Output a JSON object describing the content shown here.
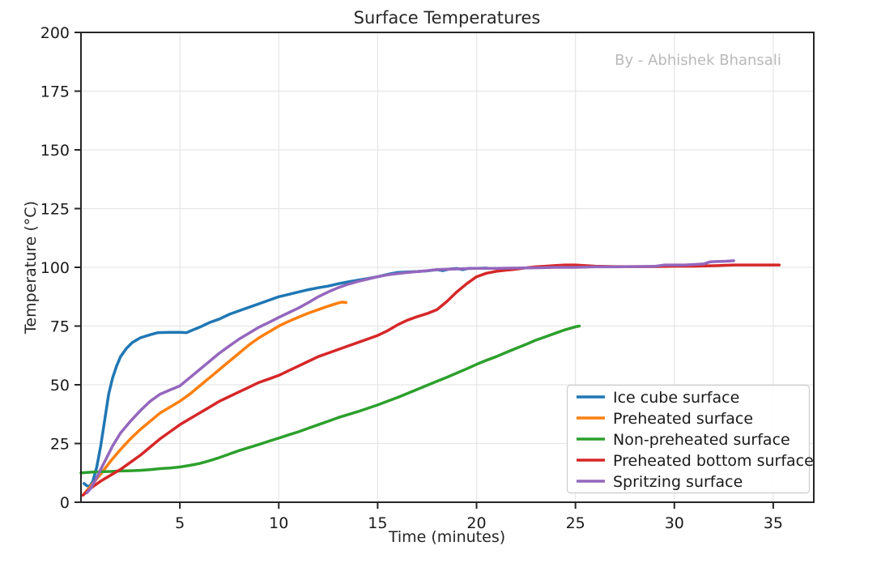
{
  "chart_data": {
    "type": "line",
    "title": "Surface Temperatures",
    "watermark": "By - Abhishek Bhansali",
    "xlabel": "Time (minutes)",
    "ylabel": "Temperature (°C)",
    "xlim": [
      0,
      37.05
    ],
    "ylim": [
      0,
      200
    ],
    "xticks": [
      5,
      10,
      15,
      20,
      25,
      30,
      35
    ],
    "yticks": [
      0,
      25,
      50,
      75,
      100,
      125,
      150,
      175,
      200
    ],
    "grid": true,
    "legend_position": "lower right",
    "colors": {
      "grid": "#e6e6e6",
      "spine": "#262626",
      "tick_label": "#1a1a1a",
      "watermark": "#b9b9b9",
      "legend_border": "#cccccc"
    },
    "series": [
      {
        "name": "Ice cube surface",
        "color": "#1f77b4",
        "points": [
          [
            0.15,
            8
          ],
          [
            0.3,
            7
          ],
          [
            0.45,
            6.8
          ],
          [
            0.6,
            9
          ],
          [
            0.8,
            15
          ],
          [
            1.0,
            24
          ],
          [
            1.2,
            35
          ],
          [
            1.4,
            46
          ],
          [
            1.6,
            53
          ],
          [
            1.8,
            58
          ],
          [
            2.0,
            62
          ],
          [
            2.3,
            65.5
          ],
          [
            2.6,
            68
          ],
          [
            3.0,
            70
          ],
          [
            3.5,
            71.3
          ],
          [
            3.9,
            72.2
          ],
          [
            4.5,
            72.3
          ],
          [
            5.0,
            72.3
          ],
          [
            5.35,
            72.2
          ],
          [
            5.5,
            72.8
          ],
          [
            6,
            74.5
          ],
          [
            6.5,
            76.5
          ],
          [
            7,
            78
          ],
          [
            7.5,
            80
          ],
          [
            8,
            81.5
          ],
          [
            8.5,
            83
          ],
          [
            9,
            84.5
          ],
          [
            9.5,
            86
          ],
          [
            10,
            87.5
          ],
          [
            10.5,
            88.5
          ],
          [
            11,
            89.5
          ],
          [
            11.5,
            90.5
          ],
          [
            12,
            91.3
          ],
          [
            12.5,
            92
          ],
          [
            13,
            93
          ],
          [
            13.5,
            93.8
          ],
          [
            14,
            94.5
          ],
          [
            14.5,
            95.2
          ],
          [
            15,
            96
          ],
          [
            15.5,
            97
          ],
          [
            16,
            97.8
          ],
          [
            16.5,
            98
          ],
          [
            17,
            98.2
          ],
          [
            17.5,
            98.5
          ],
          [
            18,
            99
          ],
          [
            18.3,
            98.6
          ],
          [
            18.6,
            99.2
          ],
          [
            19,
            99.5
          ],
          [
            19.3,
            99
          ],
          [
            19.6,
            99.6
          ],
          [
            20,
            99.6
          ],
          [
            20.5,
            99.7
          ]
        ]
      },
      {
        "name": "Preheated surface",
        "color": "#ff7f0e",
        "points": [
          [
            0.2,
            4
          ],
          [
            0.5,
            7
          ],
          [
            1,
            12
          ],
          [
            1.5,
            17.5
          ],
          [
            2,
            22.5
          ],
          [
            2.5,
            27
          ],
          [
            3,
            31
          ],
          [
            3.5,
            34.5
          ],
          [
            4,
            38
          ],
          [
            4.5,
            40.5
          ],
          [
            5,
            43
          ],
          [
            5.5,
            46
          ],
          [
            6,
            49.5
          ],
          [
            6.5,
            53
          ],
          [
            7,
            56.5
          ],
          [
            7.5,
            60
          ],
          [
            8,
            63.5
          ],
          [
            8.5,
            67
          ],
          [
            9,
            70
          ],
          [
            9.5,
            72.5
          ],
          [
            10,
            75
          ],
          [
            10.5,
            77
          ],
          [
            11,
            78.8
          ],
          [
            11.5,
            80.5
          ],
          [
            12,
            82
          ],
          [
            12.5,
            83.5
          ],
          [
            13,
            84.8
          ],
          [
            13.2,
            85.2
          ],
          [
            13.4,
            85
          ]
        ]
      },
      {
        "name": "Non-preheated surface",
        "color": "#2ca02c",
        "points": [
          [
            0,
            12.5
          ],
          [
            0.5,
            12.8
          ],
          [
            1,
            13
          ],
          [
            1.5,
            13.1
          ],
          [
            2,
            13.3
          ],
          [
            2.5,
            13.4
          ],
          [
            3,
            13.6
          ],
          [
            3.5,
            13.9
          ],
          [
            4,
            14.3
          ],
          [
            4.5,
            14.6
          ],
          [
            5,
            15
          ],
          [
            5.5,
            15.7
          ],
          [
            6,
            16.5
          ],
          [
            6.5,
            17.7
          ],
          [
            7,
            19
          ],
          [
            7.5,
            20.5
          ],
          [
            8,
            22
          ],
          [
            8.5,
            23.3
          ],
          [
            9,
            24.6
          ],
          [
            9.5,
            26
          ],
          [
            10,
            27.3
          ],
          [
            10.5,
            28.7
          ],
          [
            11,
            30
          ],
          [
            11.5,
            31.5
          ],
          [
            12,
            33
          ],
          [
            12.5,
            34.5
          ],
          [
            13,
            36
          ],
          [
            13.5,
            37.3
          ],
          [
            14,
            38.6
          ],
          [
            14.5,
            40
          ],
          [
            15,
            41.4
          ],
          [
            15.5,
            43
          ],
          [
            16,
            44.6
          ],
          [
            16.5,
            46.3
          ],
          [
            17,
            48
          ],
          [
            17.5,
            49.8
          ],
          [
            18,
            51.5
          ],
          [
            18.5,
            53.2
          ],
          [
            19,
            55
          ],
          [
            19.5,
            56.8
          ],
          [
            20,
            58.7
          ],
          [
            20.5,
            60.4
          ],
          [
            21,
            62
          ],
          [
            21.5,
            63.8
          ],
          [
            22,
            65.5
          ],
          [
            22.5,
            67.2
          ],
          [
            23,
            69
          ],
          [
            23.5,
            70.5
          ],
          [
            24,
            72
          ],
          [
            24.5,
            73.5
          ],
          [
            25,
            74.7
          ],
          [
            25.2,
            75
          ]
        ]
      },
      {
        "name": "Preheated bottom surface",
        "color": "#d62728",
        "points": [
          [
            0.1,
            3
          ],
          [
            0.5,
            6
          ],
          [
            1,
            9
          ],
          [
            1.5,
            11.5
          ],
          [
            2,
            14
          ],
          [
            2.5,
            17
          ],
          [
            3,
            20
          ],
          [
            3.5,
            23.5
          ],
          [
            4,
            27
          ],
          [
            4.5,
            30
          ],
          [
            5,
            33
          ],
          [
            5.5,
            35.5
          ],
          [
            6,
            38
          ],
          [
            6.5,
            40.5
          ],
          [
            7,
            43
          ],
          [
            7.5,
            45
          ],
          [
            8,
            47
          ],
          [
            8.5,
            49
          ],
          [
            9,
            51
          ],
          [
            9.5,
            52.5
          ],
          [
            10,
            54
          ],
          [
            10.5,
            56
          ],
          [
            11,
            58
          ],
          [
            11.5,
            60
          ],
          [
            12,
            62
          ],
          [
            12.5,
            63.5
          ],
          [
            13,
            65
          ],
          [
            13.5,
            66.5
          ],
          [
            14,
            68
          ],
          [
            14.5,
            69.5
          ],
          [
            15,
            71
          ],
          [
            15.5,
            73
          ],
          [
            16,
            75.5
          ],
          [
            16.5,
            77.5
          ],
          [
            17,
            79
          ],
          [
            17.5,
            80.3
          ],
          [
            18,
            82
          ],
          [
            18.5,
            85.5
          ],
          [
            19,
            89.5
          ],
          [
            19.5,
            93
          ],
          [
            20,
            96
          ],
          [
            20.5,
            97.5
          ],
          [
            21,
            98.3
          ],
          [
            21.5,
            98.8
          ],
          [
            22,
            99.2
          ],
          [
            22.5,
            99.8
          ],
          [
            23,
            100.2
          ],
          [
            23.5,
            100.5
          ],
          [
            24,
            100.8
          ],
          [
            24.5,
            101
          ],
          [
            25,
            101
          ],
          [
            26,
            100.5
          ],
          [
            27,
            100.3
          ],
          [
            28,
            100.3
          ],
          [
            29,
            100.3
          ],
          [
            30,
            100.5
          ],
          [
            31,
            100.5
          ],
          [
            32,
            100.7
          ],
          [
            33,
            101
          ],
          [
            34,
            101
          ],
          [
            35.3,
            101
          ]
        ]
      },
      {
        "name": "Spritzing surface",
        "color": "#9467bd",
        "points": [
          [
            0.3,
            4
          ],
          [
            0.5,
            6
          ],
          [
            0.8,
            10.5
          ],
          [
            1,
            14
          ],
          [
            1.3,
            19
          ],
          [
            1.6,
            24
          ],
          [
            2,
            29.5
          ],
          [
            2.5,
            34.5
          ],
          [
            3,
            39
          ],
          [
            3.5,
            43
          ],
          [
            4,
            46
          ],
          [
            4.5,
            47.8
          ],
          [
            5,
            49.5
          ],
          [
            5.5,
            53
          ],
          [
            6,
            56.5
          ],
          [
            6.5,
            60
          ],
          [
            7,
            63.5
          ],
          [
            7.5,
            66.5
          ],
          [
            8,
            69.5
          ],
          [
            8.5,
            72
          ],
          [
            9,
            74.5
          ],
          [
            9.5,
            76.5
          ],
          [
            10,
            78.7
          ],
          [
            10.5,
            80.7
          ],
          [
            11,
            82.7
          ],
          [
            11.5,
            85
          ],
          [
            12,
            87.5
          ],
          [
            12.5,
            89.5
          ],
          [
            13,
            91.3
          ],
          [
            13.5,
            92.8
          ],
          [
            14,
            94
          ],
          [
            14.5,
            95
          ],
          [
            15,
            96
          ],
          [
            15.5,
            96.8
          ],
          [
            16,
            97.3
          ],
          [
            16.5,
            97.8
          ],
          [
            17,
            98.2
          ],
          [
            17.5,
            98.6
          ],
          [
            18,
            99
          ],
          [
            19,
            99.3
          ],
          [
            20,
            99.6
          ],
          [
            21,
            99.6
          ],
          [
            22,
            99.7
          ],
          [
            23,
            99.8
          ],
          [
            24,
            100
          ],
          [
            25,
            100
          ],
          [
            26,
            100.2
          ],
          [
            27,
            100.2
          ],
          [
            28,
            100.3
          ],
          [
            29,
            100.4
          ],
          [
            29.5,
            101
          ],
          [
            30,
            101
          ],
          [
            30.5,
            101
          ],
          [
            31,
            101.2
          ],
          [
            31.5,
            101.5
          ],
          [
            31.8,
            102.3
          ],
          [
            32.2,
            102.5
          ],
          [
            32.6,
            102.6
          ],
          [
            33,
            102.8
          ]
        ]
      }
    ]
  }
}
